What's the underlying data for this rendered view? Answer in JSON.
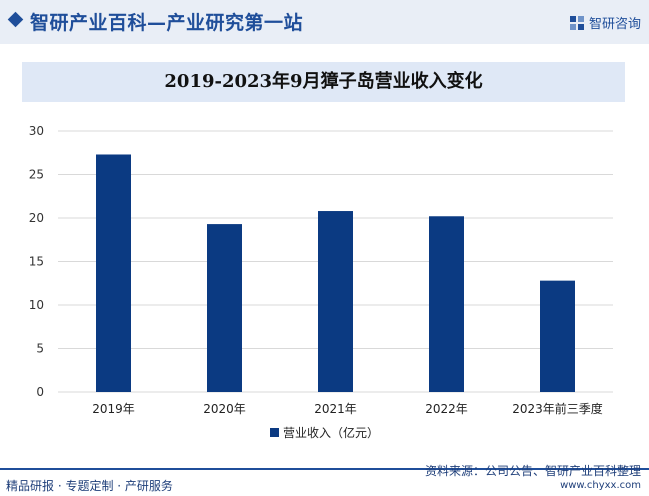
{
  "header": {
    "site_title": "智研产业百科—产业研究第一站",
    "brand_name": "智研咨询",
    "brand_icon": "zhiyan-logo-icon"
  },
  "colors": {
    "bar": "#0b3a82",
    "accent": "#1f4e9a",
    "grid": "#d9d9d9"
  },
  "chart_data": {
    "type": "bar",
    "title": "2019-2023年9月獐子岛营业收入变化",
    "categories": [
      "2019年",
      "2020年",
      "2021年",
      "2022年",
      "2023年前三季度"
    ],
    "series": [
      {
        "name": "营业收入（亿元）",
        "values": [
          27.3,
          19.3,
          20.8,
          20.2,
          12.8
        ]
      }
    ],
    "y_ticks": [
      "0",
      "5",
      "10",
      "15",
      "20",
      "25",
      "30"
    ],
    "ylim": [
      0,
      30
    ],
    "grid": true,
    "legend_position": "bottom"
  },
  "footer": {
    "left_text": "精品研报 · 专题定制 · 产研服务",
    "source": "资料来源：公司公告、智研产业百科整理",
    "url": "www.chyxx.com"
  }
}
